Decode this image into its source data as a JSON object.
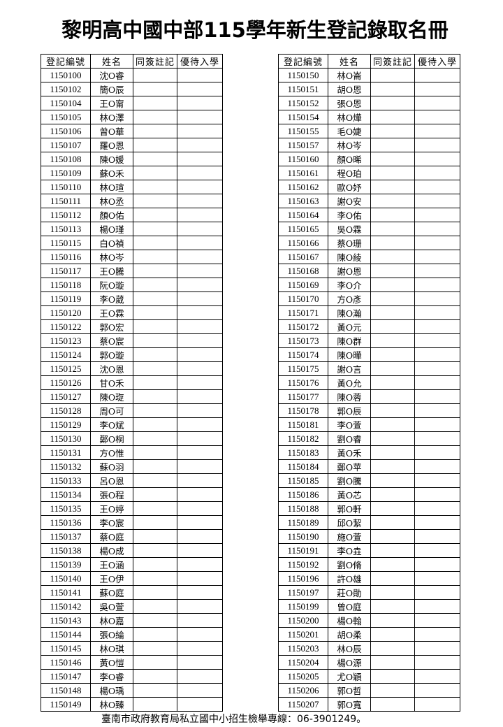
{
  "title": "黎明高中國中部115學年新生登記錄取名冊",
  "columns": [
    "登記編號",
    "姓名",
    "同簽註記",
    "優待入學"
  ],
  "left_table": [
    [
      "1150100",
      "沈O睿"
    ],
    [
      "1150102",
      "簡O辰"
    ],
    [
      "1150104",
      "王O甯"
    ],
    [
      "1150105",
      "林O澤"
    ],
    [
      "1150106",
      "曾O華"
    ],
    [
      "1150107",
      "羅O恩"
    ],
    [
      "1150108",
      "陳O媛"
    ],
    [
      "1150109",
      "蘇O禾"
    ],
    [
      "1150110",
      "林O瑄"
    ],
    [
      "1150111",
      "林O丞"
    ],
    [
      "1150112",
      "顏O佑"
    ],
    [
      "1150113",
      "楊O瑾"
    ],
    [
      "1150115",
      "白O禎"
    ],
    [
      "1150116",
      "林O岑"
    ],
    [
      "1150117",
      "王O騰"
    ],
    [
      "1150118",
      "阮O璇"
    ],
    [
      "1150119",
      "李O葳"
    ],
    [
      "1150120",
      "王O霖"
    ],
    [
      "1150122",
      "郭O宏"
    ],
    [
      "1150123",
      "蔡O宸"
    ],
    [
      "1150124",
      "郭O璇"
    ],
    [
      "1150125",
      "沈O恩"
    ],
    [
      "1150126",
      "甘O禾"
    ],
    [
      "1150127",
      "陳O琁"
    ],
    [
      "1150128",
      "周O可"
    ],
    [
      "1150129",
      "李O斌"
    ],
    [
      "1150130",
      "鄭O桐"
    ],
    [
      "1150131",
      "方O惟"
    ],
    [
      "1150132",
      "蘇O羽"
    ],
    [
      "1150133",
      "呂O恩"
    ],
    [
      "1150134",
      "張O程"
    ],
    [
      "1150135",
      "王O婷"
    ],
    [
      "1150136",
      "李O宸"
    ],
    [
      "1150137",
      "蔡O庭"
    ],
    [
      "1150138",
      "楊O成"
    ],
    [
      "1150139",
      "王O涵"
    ],
    [
      "1150140",
      "王O伊"
    ],
    [
      "1150141",
      "蘇O庭"
    ],
    [
      "1150142",
      "吳O萱"
    ],
    [
      "1150143",
      "林O嘉"
    ],
    [
      "1150144",
      "張O綸"
    ],
    [
      "1150145",
      "林O琪"
    ],
    [
      "1150146",
      "黃O愷"
    ],
    [
      "1150147",
      "李O睿"
    ],
    [
      "1150148",
      "楊O瑀"
    ],
    [
      "1150149",
      "林O臻"
    ]
  ],
  "right_table": [
    [
      "1150150",
      "林O崙"
    ],
    [
      "1150151",
      "胡O恩"
    ],
    [
      "1150152",
      "張O恩"
    ],
    [
      "1150154",
      "林O燁"
    ],
    [
      "1150155",
      "毛O婕"
    ],
    [
      "1150157",
      "林O岑"
    ],
    [
      "1150160",
      "顏O晞"
    ],
    [
      "1150161",
      "程O珀"
    ],
    [
      "1150162",
      "歐O妤"
    ],
    [
      "1150163",
      "謝O安"
    ],
    [
      "1150164",
      "李O佑"
    ],
    [
      "1150165",
      "吳O霖"
    ],
    [
      "1150166",
      "蔡O珊"
    ],
    [
      "1150167",
      "陳O綾"
    ],
    [
      "1150168",
      "謝O恩"
    ],
    [
      "1150169",
      "李O介"
    ],
    [
      "1150170",
      "方O彥"
    ],
    [
      "1150171",
      "陳O瀚"
    ],
    [
      "1150172",
      "黃O元"
    ],
    [
      "1150173",
      "陳O群"
    ],
    [
      "1150174",
      "陳O曄"
    ],
    [
      "1150175",
      "謝O言"
    ],
    [
      "1150176",
      "黃O允"
    ],
    [
      "1150177",
      "陳O蓉"
    ],
    [
      "1150178",
      "郭O辰"
    ],
    [
      "1150181",
      "李O萱"
    ],
    [
      "1150182",
      "劉O睿"
    ],
    [
      "1150183",
      "黃O禾"
    ],
    [
      "1150184",
      "鄭O苹"
    ],
    [
      "1150185",
      "劉O騰"
    ],
    [
      "1150186",
      "黃O芯"
    ],
    [
      "1150188",
      "郭O軒"
    ],
    [
      "1150189",
      "邱O絜"
    ],
    [
      "1150190",
      "施O萱"
    ],
    [
      "1150191",
      "李O垚"
    ],
    [
      "1150192",
      "劉O脩"
    ],
    [
      "1150196",
      "許O雄"
    ],
    [
      "1150197",
      "莊O勛"
    ],
    [
      "1150199",
      "曾O庭"
    ],
    [
      "1150200",
      "楊O翰"
    ],
    [
      "1150201",
      "胡O柔"
    ],
    [
      "1150203",
      "林O辰"
    ],
    [
      "1150204",
      "楊O源"
    ],
    [
      "1150205",
      "尤O穎"
    ],
    [
      "1150206",
      "郭O哲"
    ],
    [
      "1150207",
      "郭O寬"
    ]
  ],
  "footer": "臺南市政府教育局私立國中小招生檢舉專線：06-3901249。"
}
